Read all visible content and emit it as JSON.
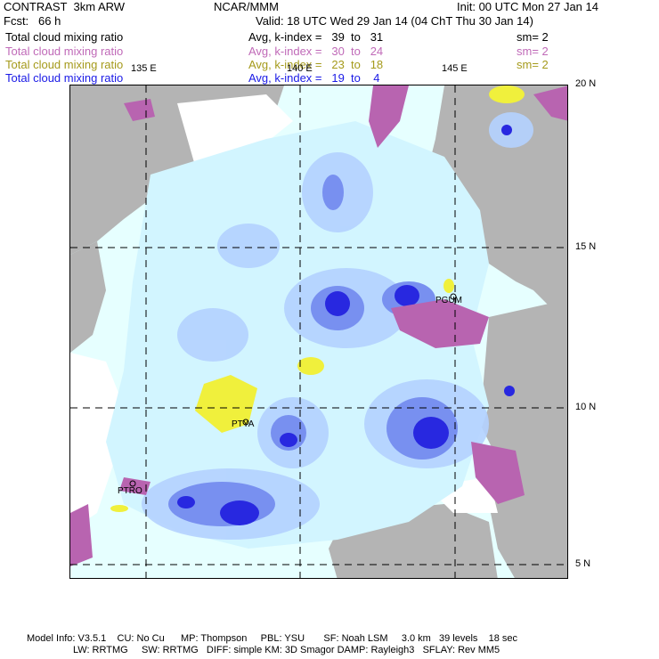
{
  "header": {
    "left1": "CONTRAST  3km ARW",
    "center1": "NCAR/MMM",
    "right1": "Init: 00 UTC Mon 27 Jan 14",
    "left2": "Fcst:   66 h",
    "center2": "Valid: 18 UTC Wed 29 Jan 14 (04 ChT Thu 30 Jan 14)"
  },
  "fields": [
    {
      "name": "Total cloud mixing ratio",
      "avg": "Avg, k-index =   39  to   31",
      "sm": "sm= 2",
      "color": "#000000"
    },
    {
      "name": "Total cloud mixing ratio",
      "avg": "Avg, k-index =   30  to   24",
      "sm": "sm= 2",
      "color": "#c06ab8"
    },
    {
      "name": "Total cloud mixing ratio",
      "avg": "Avg, k-index =   23  to   18",
      "sm": "sm= 2",
      "color": "#a59a1b"
    },
    {
      "name": "Total cloud mixing ratio",
      "avg": "Avg, k-index =   19  to    4",
      "sm": "",
      "color": "#1a1ae6"
    }
  ],
  "lat_labels": [
    "20 N",
    "15 N",
    "10 N",
    "5 N"
  ],
  "lon_labels": [
    "135 E",
    "140 E",
    "145 E"
  ],
  "stations": [
    "PGUM",
    "PTYA",
    "PTRO"
  ],
  "footer": {
    "line1": "Model Info: V3.5.1    CU: No Cu      MP: Thompson     PBL: YSU       SF: Noah LSM     3.0 km   39 levels    18 sec",
    "line2": "                 LW: RRTMG     SW: RRTMG   DIFF: simple KM: 3D Smagor DAMP: Rayleigh3   SFLAY: Rev MM5"
  }
}
